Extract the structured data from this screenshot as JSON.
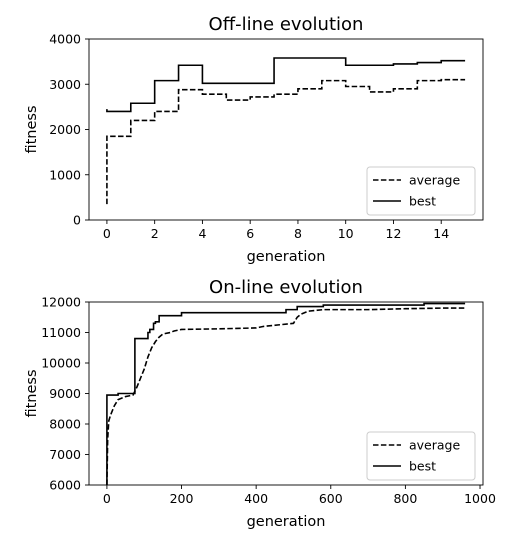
{
  "chart_data": [
    {
      "type": "line",
      "title": "Off-line evolution",
      "xlabel": "generation",
      "ylabel": "fitness",
      "xlim": [
        -0.75,
        15.75
      ],
      "ylim": [
        0,
        4000
      ],
      "xticks": [
        0,
        2,
        4,
        6,
        8,
        10,
        12,
        14
      ],
      "yticks": [
        0,
        1000,
        2000,
        3000,
        4000
      ],
      "grid": false,
      "legend_position": "lower-right",
      "series": [
        {
          "name": "average",
          "style": "dashed",
          "color": "#000000",
          "step": "post",
          "x": [
            0,
            0,
            1,
            2,
            3,
            4,
            5,
            6,
            7,
            8,
            9,
            10,
            11,
            12,
            13,
            14,
            15
          ],
          "y": [
            350,
            1850,
            2200,
            2400,
            2880,
            2780,
            2650,
            2720,
            2780,
            2900,
            3080,
            2950,
            2830,
            2900,
            3080,
            3100,
            3100
          ]
        },
        {
          "name": "best",
          "style": "solid",
          "color": "#000000",
          "step": "post",
          "x": [
            0,
            0,
            1,
            2,
            3,
            4,
            5,
            6,
            7,
            8,
            9,
            10,
            11,
            12,
            13,
            14,
            15
          ],
          "y": [
            2450,
            2400,
            2580,
            3080,
            3420,
            3020,
            3020,
            3020,
            3580,
            3580,
            3580,
            3420,
            3420,
            3450,
            3480,
            3520,
            3520
          ]
        }
      ]
    },
    {
      "type": "line",
      "title": "On-line evolution",
      "xlabel": "generation",
      "ylabel": "fitness",
      "xlim": [
        -48,
        1008
      ],
      "ylim": [
        6000,
        12000
      ],
      "xticks": [
        0,
        200,
        400,
        600,
        800,
        1000
      ],
      "yticks": [
        6000,
        7000,
        8000,
        9000,
        10000,
        11000,
        12000
      ],
      "grid": false,
      "legend_position": "lower-right",
      "series": [
        {
          "name": "average",
          "style": "dashed",
          "color": "#000000",
          "step": "none",
          "x": [
            0,
            2,
            5,
            10,
            20,
            30,
            50,
            70,
            80,
            90,
            100,
            110,
            120,
            130,
            140,
            150,
            170,
            180,
            200,
            300,
            400,
            420,
            460,
            500,
            510,
            520,
            540,
            580,
            700,
            800,
            900,
            960
          ],
          "y": [
            6000,
            7500,
            8100,
            8300,
            8600,
            8800,
            8900,
            8950,
            9200,
            9500,
            9800,
            10200,
            10500,
            10700,
            10850,
            10950,
            11000,
            11050,
            11100,
            11120,
            11150,
            11200,
            11250,
            11300,
            11500,
            11600,
            11700,
            11750,
            11750,
            11780,
            11800,
            11800
          ]
        },
        {
          "name": "best",
          "style": "solid",
          "color": "#000000",
          "step": "post",
          "x": [
            0,
            0,
            5,
            30,
            50,
            75,
            110,
            115,
            125,
            130,
            140,
            200,
            400,
            480,
            510,
            580,
            700,
            840,
            850,
            960
          ],
          "y": [
            6000,
            8950,
            8950,
            9000,
            9000,
            10800,
            11000,
            11100,
            11300,
            11350,
            11550,
            11650,
            11650,
            11750,
            11850,
            11900,
            11900,
            11900,
            11950,
            11950
          ]
        }
      ]
    }
  ]
}
